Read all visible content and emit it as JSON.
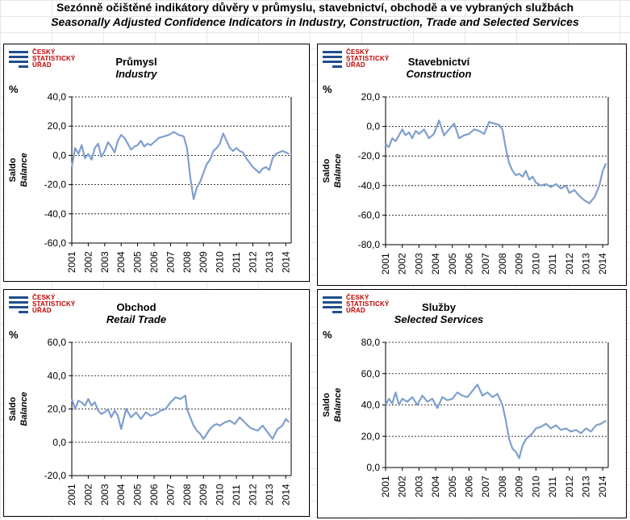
{
  "title": {
    "cz": "Sezónně očištěné indikátory důvěry v průmyslu, stavebnictví, obchodě a ve vybraných službách",
    "en": "Seasonally Adjusted Confidence Indicators in Industry, Construction, Trade and Selected Services"
  },
  "logo": {
    "line1": "ČESKÝ",
    "line2": "STATISTICKÝ",
    "line3": "ÚŘAD"
  },
  "colors": {
    "series": "#7f9fce",
    "logo_blue": "#1f4e8c",
    "logo_red": "#c00000"
  },
  "chart_data": [
    {
      "type": "line",
      "title": "Průmysl",
      "subtitle": "Industry",
      "unit": "%",
      "ylabel": "Saldo",
      "ylabel2": "Balance",
      "ylim": [
        -60,
        40
      ],
      "yticks": [
        -60,
        -40,
        -20,
        0,
        20,
        40
      ],
      "ytick_labels": [
        "-60,0",
        "-40,0",
        "-20,0",
        "0,0",
        "20,0",
        "40,0"
      ],
      "xlim": [
        2001,
        2014.33
      ],
      "xticks": [
        "2001",
        "2002",
        "2003",
        "2004",
        "2005",
        "2006",
        "2007",
        "2008",
        "2009",
        "2010",
        "2011",
        "2012",
        "2013",
        "2014"
      ],
      "grid": "horizontal dashed",
      "series": [
        {
          "x": [
            2001.0,
            2001.2,
            2001.4,
            2001.6,
            2001.8,
            2002.0,
            2002.2,
            2002.4,
            2002.6,
            2002.8,
            2003.0,
            2003.2,
            2003.4,
            2003.6,
            2003.8,
            2004.0,
            2004.2,
            2004.4,
            2004.6,
            2004.8,
            2005.0,
            2005.2,
            2005.4,
            2005.6,
            2005.8,
            2006.0,
            2006.3,
            2006.6,
            2006.9,
            2007.2,
            2007.5,
            2007.8,
            2008.0,
            2008.2,
            2008.4,
            2008.6,
            2008.8,
            2009.0,
            2009.2,
            2009.4,
            2009.6,
            2009.8,
            2010.0,
            2010.2,
            2010.4,
            2010.6,
            2010.8,
            2011.0,
            2011.2,
            2011.4,
            2011.6,
            2011.8,
            2012.0,
            2012.2,
            2012.4,
            2012.6,
            2012.8,
            2013.0,
            2013.2,
            2013.4,
            2013.6,
            2013.8,
            2014.0,
            2014.2
          ],
          "y": [
            -8,
            5,
            1,
            7,
            -2,
            1,
            -3,
            5,
            8,
            -1,
            3,
            9,
            6,
            2,
            10,
            14,
            12,
            8,
            4,
            6,
            7,
            10,
            6,
            8,
            7,
            9,
            12,
            13,
            14,
            16,
            14,
            13,
            5,
            -15,
            -30,
            -22,
            -18,
            -12,
            -6,
            -3,
            3,
            5,
            8,
            15,
            10,
            5,
            3,
            5,
            3,
            2,
            -2,
            -5,
            -8,
            -10,
            -12,
            -9,
            -8,
            -10,
            -2,
            1,
            2,
            3,
            2,
            1
          ]
        }
      ]
    },
    {
      "type": "line",
      "title": "Stavebnictví",
      "subtitle": "Construction",
      "unit": "%",
      "ylabel": "Saldo",
      "ylabel2": "Balance",
      "ylim": [
        -80,
        20
      ],
      "yticks": [
        -80,
        -60,
        -40,
        -20,
        0,
        20
      ],
      "ytick_labels": [
        "-80,0",
        "-60,0",
        "-40,0",
        "-20,0",
        "0,0",
        "20,0"
      ],
      "xlim": [
        2001,
        2014.33
      ],
      "xticks": [
        "2001",
        "2002",
        "2003",
        "2004",
        "2005",
        "2006",
        "2007",
        "2008",
        "2009",
        "2010",
        "2011",
        "2012",
        "2013",
        "2014"
      ],
      "grid": "horizontal dashed",
      "series": [
        {
          "x": [
            2001.0,
            2001.2,
            2001.4,
            2001.6,
            2001.8,
            2002.0,
            2002.2,
            2002.4,
            2002.6,
            2002.8,
            2003.0,
            2003.3,
            2003.6,
            2003.9,
            2004.2,
            2004.5,
            2004.8,
            2005.1,
            2005.4,
            2005.7,
            2006.0,
            2006.3,
            2006.6,
            2006.9,
            2007.2,
            2007.5,
            2007.8,
            2008.0,
            2008.2,
            2008.4,
            2008.6,
            2008.8,
            2009.0,
            2009.2,
            2009.4,
            2009.6,
            2009.8,
            2010.0,
            2010.3,
            2010.6,
            2010.9,
            2011.2,
            2011.5,
            2011.8,
            2012.0,
            2012.3,
            2012.6,
            2012.9,
            2013.2,
            2013.5,
            2013.8,
            2014.0,
            2014.2
          ],
          "y": [
            -12,
            -14,
            -8,
            -10,
            -6,
            -2,
            -6,
            -4,
            -8,
            -3,
            -5,
            -2,
            -8,
            -5,
            4,
            -6,
            -2,
            2,
            -8,
            -6,
            -5,
            -2,
            -3,
            -5,
            3,
            2,
            1,
            -2,
            -15,
            -25,
            -30,
            -33,
            -32,
            -34,
            -30,
            -36,
            -34,
            -38,
            -40,
            -39,
            -41,
            -39,
            -42,
            -40,
            -45,
            -43,
            -47,
            -50,
            -52,
            -48,
            -40,
            -30,
            -25
          ]
        }
      ]
    },
    {
      "type": "line",
      "title": "Obchod",
      "subtitle": "Retail Trade",
      "unit": "%",
      "ylabel": "Saldo",
      "ylabel2": "Balance",
      "ylim": [
        -20,
        60
      ],
      "yticks": [
        -20,
        0,
        20,
        40,
        60
      ],
      "ytick_labels": [
        "-20,0",
        "0,0",
        "20,0",
        "40,0",
        "60,0"
      ],
      "xlim": [
        2001,
        2014.33
      ],
      "xticks": [
        "2001",
        "2002",
        "2003",
        "2004",
        "2005",
        "2006",
        "2007",
        "2008",
        "2009",
        "2010",
        "2011",
        "2012",
        "2013",
        "2014"
      ],
      "grid": "horizontal dashed",
      "series": [
        {
          "x": [
            2001.0,
            2001.2,
            2001.4,
            2001.6,
            2001.8,
            2002.0,
            2002.2,
            2002.4,
            2002.6,
            2002.8,
            2003.0,
            2003.2,
            2003.4,
            2003.6,
            2003.8,
            2004.0,
            2004.3,
            2004.6,
            2004.9,
            2005.2,
            2005.5,
            2005.8,
            2006.1,
            2006.4,
            2006.7,
            2007.0,
            2007.3,
            2007.6,
            2007.9,
            2008.0,
            2008.2,
            2008.4,
            2008.6,
            2008.8,
            2009.0,
            2009.2,
            2009.4,
            2009.6,
            2009.8,
            2010.0,
            2010.3,
            2010.6,
            2010.9,
            2011.2,
            2011.5,
            2011.8,
            2012.0,
            2012.3,
            2012.6,
            2012.9,
            2013.2,
            2013.5,
            2013.8,
            2014.0,
            2014.2
          ],
          "y": [
            26,
            20,
            25,
            24,
            22,
            26,
            22,
            24,
            19,
            17,
            18,
            20,
            15,
            19,
            16,
            8,
            20,
            15,
            18,
            14,
            18,
            16,
            17,
            19,
            20,
            24,
            27,
            26,
            28,
            20,
            15,
            10,
            7,
            5,
            2,
            5,
            8,
            10,
            11,
            10,
            12,
            13,
            11,
            15,
            12,
            9,
            8,
            7,
            10,
            6,
            2,
            8,
            10,
            14,
            12
          ]
        }
      ]
    },
    {
      "type": "line",
      "title": "Služby",
      "subtitle": "Selected Services",
      "unit": "%",
      "ylabel": "Saldo",
      "ylabel2": "Balance",
      "ylim": [
        0,
        80
      ],
      "yticks": [
        0,
        20,
        40,
        60,
        80
      ],
      "ytick_labels": [
        "0,0",
        "20,0",
        "40,0",
        "60,0",
        "80,0"
      ],
      "xlim": [
        2001,
        2014.33
      ],
      "xticks": [
        "2001",
        "2002",
        "2003",
        "2004",
        "2005",
        "2006",
        "2007",
        "2008",
        "2009",
        "2010",
        "2011",
        "2012",
        "2013",
        "2014"
      ],
      "grid": "horizontal dashed",
      "series": [
        {
          "x": [
            2001.0,
            2001.2,
            2001.4,
            2001.6,
            2001.8,
            2002.0,
            2002.3,
            2002.6,
            2002.9,
            2003.2,
            2003.5,
            2003.8,
            2004.1,
            2004.4,
            2004.7,
            2005.0,
            2005.3,
            2005.6,
            2005.9,
            2006.2,
            2006.5,
            2006.8,
            2007.1,
            2007.4,
            2007.7,
            2008.0,
            2008.2,
            2008.4,
            2008.6,
            2008.8,
            2009.0,
            2009.2,
            2009.4,
            2009.6,
            2009.8,
            2010.0,
            2010.3,
            2010.6,
            2010.9,
            2011.2,
            2011.5,
            2011.8,
            2012.1,
            2012.4,
            2012.7,
            2013.0,
            2013.3,
            2013.6,
            2013.9,
            2014.2
          ],
          "y": [
            40,
            44,
            41,
            48,
            40,
            44,
            42,
            45,
            40,
            46,
            42,
            44,
            38,
            45,
            43,
            44,
            48,
            46,
            45,
            49,
            53,
            46,
            48,
            45,
            47,
            40,
            30,
            18,
            12,
            10,
            6,
            14,
            18,
            20,
            22,
            25,
            26,
            28,
            25,
            27,
            24,
            25,
            23,
            24,
            22,
            25,
            23,
            27,
            28,
            30
          ]
        }
      ]
    }
  ]
}
